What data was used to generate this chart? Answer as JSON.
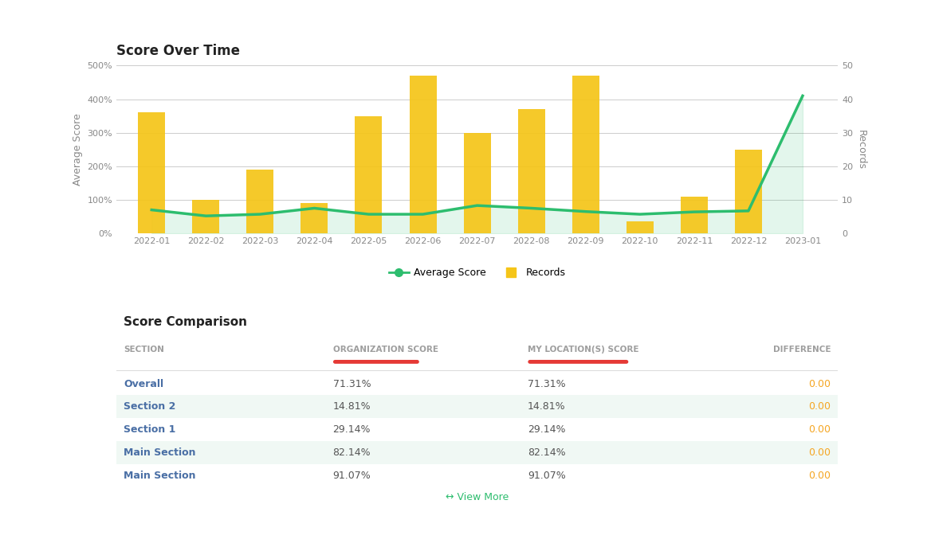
{
  "chart_title": "Score Over Time",
  "table_title": "Score Comparison",
  "x_labels": [
    "2022-01",
    "2022-02",
    "2022-03",
    "2022-04",
    "2022-05",
    "2022-06",
    "2022-07",
    "2022-08",
    "2022-09",
    "2022-10",
    "2022-11",
    "2022-12",
    "2023-01"
  ],
  "bar_values": [
    360,
    100,
    190,
    90,
    350,
    470,
    300,
    370,
    470,
    35,
    110,
    250,
    0
  ],
  "line_values": [
    70,
    52,
    57,
    75,
    57,
    57,
    83,
    75,
    65,
    57,
    64,
    67,
    410
  ],
  "left_yticks": [
    0,
    100,
    200,
    300,
    400,
    500
  ],
  "right_yticks": [
    0,
    10,
    20,
    30,
    40,
    50
  ],
  "left_ylabel": "Average Score",
  "right_ylabel": "Records",
  "bar_color": "#F5C518",
  "line_color": "#2DBD6E",
  "fill_color": "#E8F8F0",
  "legend_items": [
    "Average Score",
    "Records"
  ],
  "legend_colors": [
    "#2DBD6E",
    "#F5C518"
  ],
  "background_color": "#ffffff",
  "grid_color": "#cccccc",
  "table_sections": [
    "Overall",
    "Section 2",
    "Section 1",
    "Main Section",
    "Main Section"
  ],
  "table_org_scores": [
    "71.31%",
    "14.81%",
    "29.14%",
    "82.14%",
    "91.07%"
  ],
  "table_loc_scores": [
    "71.31%",
    "14.81%",
    "29.14%",
    "82.14%",
    "91.07%"
  ],
  "table_diff": [
    "0.00",
    "0.00",
    "0.00",
    "0.00",
    "0.00"
  ],
  "col_header_section": "SECTION",
  "col_header_org": "ORGANIZATION SCORE",
  "col_header_loc": "MY LOCATION(S) SCORE",
  "col_header_diff": "DIFFERENCE",
  "header_color": "#9e9e9e",
  "section_color": "#4a6fa5",
  "score_color": "#555555",
  "diff_color": "#F5A623",
  "row_alt_color": "#f0f8f4",
  "row_white_color": "#ffffff",
  "underline_color": "#e53935",
  "view_more_color": "#2DBD6E",
  "sep_color": "#dddddd"
}
